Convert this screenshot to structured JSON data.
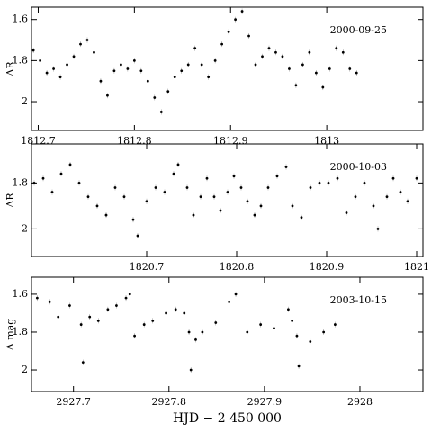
{
  "chart_data": [
    {
      "type": "scatter",
      "ylabel": "ΔR",
      "annotation": "2000-09-25",
      "color": "#000000",
      "invert_y": true,
      "xlim": [
        1812.693,
        1813.1
      ],
      "ylim": [
        1.54,
        2.14
      ],
      "xticks": [
        1812.7,
        1812.8,
        1812.9,
        1813
      ],
      "yticks": [
        1.6,
        1.8,
        2
      ],
      "x": [
        1812.695,
        1812.702,
        1812.709,
        1812.716,
        1812.723,
        1812.73,
        1812.737,
        1812.744,
        1812.751,
        1812.758,
        1812.765,
        1812.772,
        1812.779,
        1812.786,
        1812.793,
        1812.8,
        1812.807,
        1812.814,
        1812.821,
        1812.828,
        1812.835,
        1812.842,
        1812.849,
        1812.856,
        1812.863,
        1812.87,
        1812.877,
        1812.884,
        1812.891,
        1812.898,
        1812.905,
        1812.912,
        1812.919,
        1812.926,
        1812.933,
        1812.94,
        1812.947,
        1812.954,
        1812.961,
        1812.968,
        1812.975,
        1812.982,
        1812.989,
        1812.996,
        1813.003,
        1813.01,
        1813.017,
        1813.024,
        1813.031
      ],
      "values": [
        1.75,
        1.8,
        1.86,
        1.84,
        1.88,
        1.82,
        1.78,
        1.72,
        1.7,
        1.76,
        1.9,
        1.97,
        1.85,
        1.82,
        1.84,
        1.8,
        1.85,
        1.9,
        1.98,
        2.05,
        1.95,
        1.88,
        1.85,
        1.82,
        1.74,
        1.82,
        1.88,
        1.8,
        1.72,
        1.66,
        1.6,
        1.56,
        1.68,
        1.82,
        1.78,
        1.74,
        1.76,
        1.78,
        1.84,
        1.92,
        1.82,
        1.76,
        1.86,
        1.93,
        1.84,
        1.74,
        1.76,
        1.84,
        1.86
      ]
    },
    {
      "type": "scatter",
      "ylabel": "ΔR",
      "annotation": "2000-10-03",
      "color": "#000000",
      "invert_y": true,
      "xlim": [
        1820.572,
        1821.007
      ],
      "ylim": [
        1.63,
        2.12
      ],
      "xticks": [
        1820.7,
        1820.8,
        1820.9,
        1821
      ],
      "yticks": [
        1.8,
        2
      ],
      "x": [
        1820.575,
        1820.585,
        1820.595,
        1820.605,
        1820.615,
        1820.625,
        1820.635,
        1820.645,
        1820.655,
        1820.665,
        1820.675,
        1820.685,
        1820.69,
        1820.7,
        1820.71,
        1820.72,
        1820.73,
        1820.735,
        1820.745,
        1820.752,
        1820.76,
        1820.767,
        1820.775,
        1820.782,
        1820.79,
        1820.797,
        1820.805,
        1820.812,
        1820.82,
        1820.827,
        1820.835,
        1820.845,
        1820.855,
        1820.862,
        1820.872,
        1820.882,
        1820.892,
        1820.902,
        1820.912,
        1820.922,
        1820.932,
        1820.942,
        1820.952,
        1820.957,
        1820.967,
        1820.974,
        1820.982,
        1820.99,
        1821.0
      ],
      "values": [
        1.8,
        1.78,
        1.84,
        1.76,
        1.72,
        1.8,
        1.86,
        1.9,
        1.94,
        1.82,
        1.86,
        1.96,
        2.03,
        1.88,
        1.82,
        1.84,
        1.76,
        1.72,
        1.82,
        1.94,
        1.86,
        1.78,
        1.86,
        1.92,
        1.84,
        1.77,
        1.82,
        1.88,
        1.94,
        1.9,
        1.82,
        1.77,
        1.73,
        1.9,
        1.95,
        1.82,
        1.8,
        1.8,
        1.78,
        1.93,
        1.86,
        1.8,
        1.9,
        2.0,
        1.86,
        1.78,
        1.84,
        1.88,
        1.78
      ]
    },
    {
      "type": "scatter",
      "ylabel": "Δ mag",
      "annotation": "2003-10-15",
      "xlabel": "HJD  −  2 450 000",
      "color": "#000000",
      "invert_y": true,
      "xlim": [
        2927.656,
        2928.066
      ],
      "ylim": [
        1.51,
        2.114
      ],
      "xticks": [
        2927.7,
        2927.8,
        2927.9,
        2928
      ],
      "yticks": [
        1.6,
        1.8,
        2
      ],
      "x": [
        2927.662,
        2927.675,
        2927.684,
        2927.696,
        2927.708,
        2927.71,
        2927.717,
        2927.726,
        2927.736,
        2927.745,
        2927.755,
        2927.759,
        2927.764,
        2927.774,
        2927.783,
        2927.797,
        2927.807,
        2927.816,
        2927.821,
        2927.823,
        2927.828,
        2927.835,
        2927.849,
        2927.863,
        2927.87,
        2927.882,
        2927.896,
        2927.91,
        2927.925,
        2927.929,
        2927.934,
        2927.936,
        2927.948,
        2927.962,
        2927.974
      ],
      "values": [
        1.62,
        1.64,
        1.72,
        1.66,
        1.76,
        1.96,
        1.72,
        1.74,
        1.68,
        1.66,
        1.62,
        1.6,
        1.82,
        1.76,
        1.74,
        1.7,
        1.68,
        1.7,
        1.8,
        2.0,
        1.84,
        1.8,
        1.75,
        1.64,
        1.6,
        1.8,
        1.76,
        1.78,
        1.68,
        1.74,
        1.82,
        1.98,
        1.85,
        1.8,
        1.76
      ]
    }
  ]
}
